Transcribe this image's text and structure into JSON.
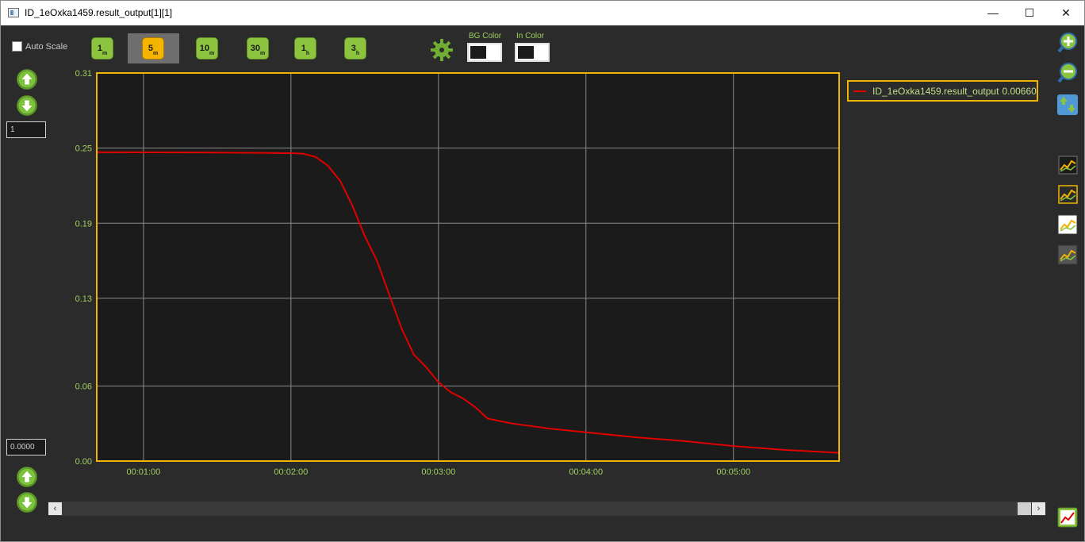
{
  "window": {
    "title": "ID_1eOxka1459.result_output[1][1]",
    "minimize_glyph": "—",
    "maximize_glyph": "☐",
    "close_glyph": "✕"
  },
  "toolbar": {
    "auto_scale_label": "Auto Scale",
    "time_buttons": [
      {
        "num": "1",
        "unit": "m"
      },
      {
        "num": "5",
        "unit": "m"
      },
      {
        "num": "10",
        "unit": "m"
      },
      {
        "num": "30",
        "unit": "m"
      },
      {
        "num": "1",
        "unit": "h"
      },
      {
        "num": "3",
        "unit": "h"
      }
    ],
    "active_time_button": "5m",
    "bg_color_label": "BG Color",
    "in_color_label": "In Color"
  },
  "left_panel": {
    "upper_value": "1",
    "lower_value": "0.0000"
  },
  "legend": {
    "series_name": "ID_1eOxka1459.result_output",
    "series_value": "0.00660"
  },
  "colors": {
    "plot_bg": "#1b1b1b",
    "plot_border": "#f0b400",
    "grid": "#8a8a8a",
    "axis_text": "#9fd15e",
    "series": "#e00000",
    "accent_green": "#8cc43f",
    "active_button": "#f4b400"
  },
  "icons": {
    "scroll_left": "‹",
    "scroll_right": "›"
  },
  "chart_data": {
    "type": "line",
    "title": "",
    "xlabel": "",
    "ylabel": "",
    "x_ticks": [
      "00:01:00",
      "00:02:00",
      "00:03:00",
      "00:04:00",
      "00:05:00"
    ],
    "y_ticks": [
      "0.31",
      "0.25",
      "0.19",
      "0.13",
      "0.06",
      "0.00"
    ],
    "xlim": [
      "00:00:41",
      "00:05:43"
    ],
    "ylim": [
      0,
      0.31
    ],
    "grid": true,
    "legend_position": "right",
    "series": [
      {
        "name": "ID_1eOxka1459.result_output",
        "x": [
          "00:00:41",
          "00:01:30",
          "00:02:00",
          "00:02:05",
          "00:02:10",
          "00:02:15",
          "00:02:20",
          "00:02:25",
          "00:02:30",
          "00:02:35",
          "00:02:40",
          "00:02:45",
          "00:02:50",
          "00:02:55",
          "00:03:00",
          "00:03:05",
          "00:03:10",
          "00:03:15",
          "00:03:20",
          "00:03:30",
          "00:03:45",
          "00:04:00",
          "00:04:20",
          "00:04:40",
          "00:05:00",
          "00:05:20",
          "00:05:43"
        ],
        "y": [
          0.2467,
          0.2465,
          0.246,
          0.2455,
          0.243,
          0.236,
          0.224,
          0.204,
          0.18,
          0.16,
          0.133,
          0.106,
          0.085,
          0.075,
          0.063,
          0.055,
          0.05,
          0.043,
          0.034,
          0.03,
          0.026,
          0.023,
          0.019,
          0.016,
          0.012,
          0.009,
          0.0066
        ]
      }
    ]
  }
}
